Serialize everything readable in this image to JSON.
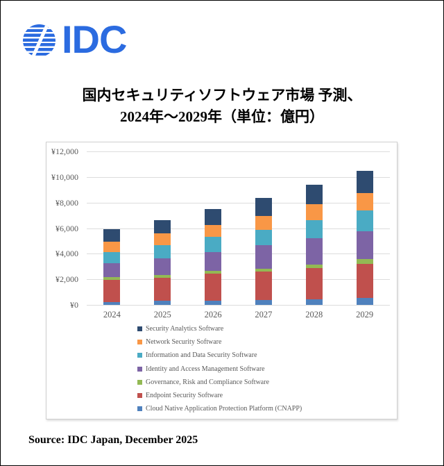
{
  "page": {
    "background": "#ffffff",
    "frame_border_color": "#000000"
  },
  "logo": {
    "text": "IDC",
    "color": "#2B6BE0",
    "globe_icon": "idc-globe-icon"
  },
  "title": {
    "line1": "国内セキュリティソフトウェア市場 予測、",
    "line2": "2024年～2029年（単位：億円）"
  },
  "source": {
    "text": "Source: IDC Japan, December 2025"
  },
  "chart_data": {
    "type": "bar",
    "stacked": true,
    "title": "国内セキュリティソフトウェア市場 予測、2024年～2029年（単位：億円）",
    "xlabel": "",
    "ylabel": "",
    "unit": "億円",
    "ylim": [
      0,
      12000
    ],
    "grid": true,
    "gridline_color": "#dcdcdc",
    "axis_text_color": "#595959",
    "legend_position": "bottom-left, one item per row, top-to-bottom is reverse of stack order",
    "categories": [
      "2024",
      "2025",
      "2026",
      "2027",
      "2028",
      "2029"
    ],
    "yticks": [
      {
        "label": "¥0",
        "value": 0
      },
      {
        "label": "¥2,000",
        "value": 2000
      },
      {
        "label": "¥4,000",
        "value": 4000
      },
      {
        "label": "¥6,000",
        "value": 6000
      },
      {
        "label": "¥8,000",
        "value": 8000
      },
      {
        "label": "¥10,000",
        "value": 10000
      },
      {
        "label": "¥12,000",
        "value": 12000
      }
    ],
    "series_note": "listed bottom-to-top of the stack; values estimated from gridlines, unit 億円",
    "series": [
      {
        "name": "Cloud Native Application Protection Platform (CNAPP)",
        "color": "#4F81BD",
        "values": [
          240,
          300,
          320,
          370,
          410,
          520
        ]
      },
      {
        "name": "Endpoint Security Software",
        "color": "#C0504D",
        "values": [
          1710,
          1830,
          2100,
          2230,
          2450,
          2660
        ]
      },
      {
        "name": "Governance, Risk and Compliance Software",
        "color": "#93B954",
        "values": [
          230,
          200,
          250,
          240,
          290,
          400
        ]
      },
      {
        "name": "Identity and Access Management Software",
        "color": "#7D64A5",
        "values": [
          1060,
          1310,
          1480,
          1820,
          2040,
          2180
        ]
      },
      {
        "name": "Information and Data Security Software",
        "color": "#4AABC4",
        "values": [
          910,
          1050,
          1160,
          1220,
          1460,
          1600
        ]
      },
      {
        "name": "Network Security Software",
        "color": "#F99746",
        "values": [
          800,
          890,
          960,
          1060,
          1200,
          1360
        ]
      },
      {
        "name": "Security Analytics Software",
        "color": "#2E4B70",
        "values": [
          950,
          1020,
          1205,
          1440,
          1525,
          1780
        ]
      }
    ],
    "totals": [
      5900,
      6600,
      7475,
      8380,
      9375,
      10500
    ]
  }
}
